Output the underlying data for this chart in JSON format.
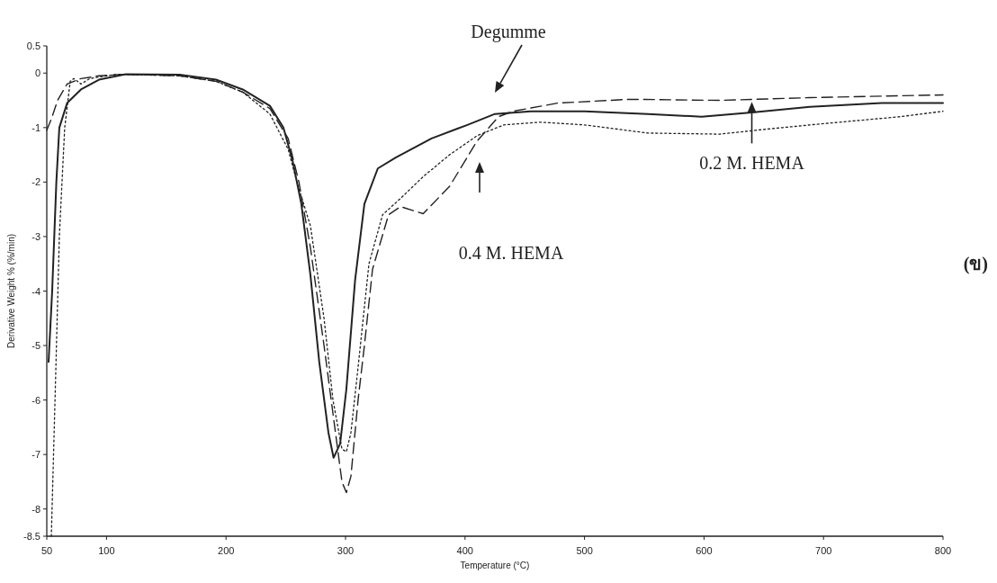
{
  "chart_data": {
    "type": "line",
    "xlabel": "Temperature (°C)",
    "ylabel": "Derivative Weight % (%/min)",
    "xlim": [
      50,
      800
    ],
    "ylim": [
      -8.5,
      0.5
    ],
    "xticks": [
      50,
      100,
      200,
      300,
      400,
      500,
      600,
      700,
      800
    ],
    "yticks": [
      0.5,
      0,
      -1,
      -2,
      -3,
      -4,
      -5,
      -6,
      -7,
      -8,
      -8.5
    ],
    "series": [
      {
        "color": "#222222",
        "line_style": "solid",
        "x": [
          51.5,
          54.5,
          58,
          60.5,
          67,
          78.6,
          93.7,
          116,
          161,
          191.6,
          214,
          236.7,
          248,
          255.6,
          263,
          270.6,
          278,
          285.7,
          290,
          295.5,
          300.7,
          308,
          315.8,
          327,
          342,
          372,
          402,
          425,
          455,
          500,
          553,
          598,
          640,
          688.6,
          748.8,
          800
        ],
        "values": [
          -5.3,
          -4,
          -2,
          -1,
          -0.55,
          -0.3,
          -0.12,
          -0.02,
          -0.03,
          -0.12,
          -0.3,
          -0.6,
          -1.0,
          -1.6,
          -2.4,
          -3.7,
          -5.3,
          -6.6,
          -7.06,
          -6.8,
          -5.8,
          -3.8,
          -2.4,
          -1.75,
          -1.55,
          -1.2,
          -0.95,
          -0.75,
          -0.7,
          -0.7,
          -0.75,
          -0.8,
          -0.72,
          -0.62,
          -0.55,
          -0.55
        ]
      },
      {
        "color": "#222222",
        "line_style": "dashed",
        "x": [
          50,
          54.5,
          59,
          67,
          78.6,
          93.7,
          116,
          161,
          191.6,
          214,
          236.7,
          252,
          261,
          270.6,
          282,
          291,
          297,
          300.7,
          304.5,
          310.5,
          315.8,
          322.6,
          336,
          346,
          365,
          387,
          410,
          428,
          440,
          477.7,
          538,
          613,
          688.6,
          800
        ],
        "values": [
          -1.05,
          -0.8,
          -0.5,
          -0.2,
          -0.1,
          -0.05,
          -0.02,
          -0.05,
          -0.15,
          -0.35,
          -0.65,
          -1.2,
          -2.0,
          -3.2,
          -5,
          -6.5,
          -7.5,
          -7.7,
          -7.4,
          -6,
          -5.0,
          -3.6,
          -2.6,
          -2.45,
          -2.58,
          -2.08,
          -1.25,
          -0.8,
          -0.7,
          -0.55,
          -0.48,
          -0.5,
          -0.45,
          -0.4
        ]
      },
      {
        "color": "#222222",
        "line_style": "dotted",
        "x": [
          53.8,
          57.5,
          60.5,
          65,
          69.6,
          72.6,
          78.6,
          86,
          108.7,
          161,
          191.6,
          214,
          236.7,
          252,
          259.3,
          270.6,
          282,
          289.5,
          297,
          300.7,
          304.5,
          310.5,
          319.6,
          331,
          346,
          365,
          387,
          410,
          432.5,
          462.7,
          500,
          553,
          613,
          643,
          688.6,
          764,
          800
        ],
        "values": [
          -8.5,
          -5.5,
          -3,
          -1,
          -0.15,
          -0.1,
          -0.2,
          -0.1,
          -0.02,
          -0.05,
          -0.15,
          -0.35,
          -0.75,
          -1.4,
          -2.0,
          -2.8,
          -4.5,
          -6.0,
          -6.9,
          -6.95,
          -6.6,
          -5.4,
          -3.5,
          -2.6,
          -2.3,
          -1.9,
          -1.5,
          -1.15,
          -0.95,
          -0.9,
          -0.95,
          -1.1,
          -1.12,
          -1.05,
          -0.95,
          -0.8,
          -0.7
        ]
      }
    ],
    "annotations": [
      "Degumme",
      "0.4 M. HEMA",
      {
        "text": "0.2 M. HEMA",
        "x": 640,
        "y": -0.53
      },
      "(ข)"
    ]
  }
}
